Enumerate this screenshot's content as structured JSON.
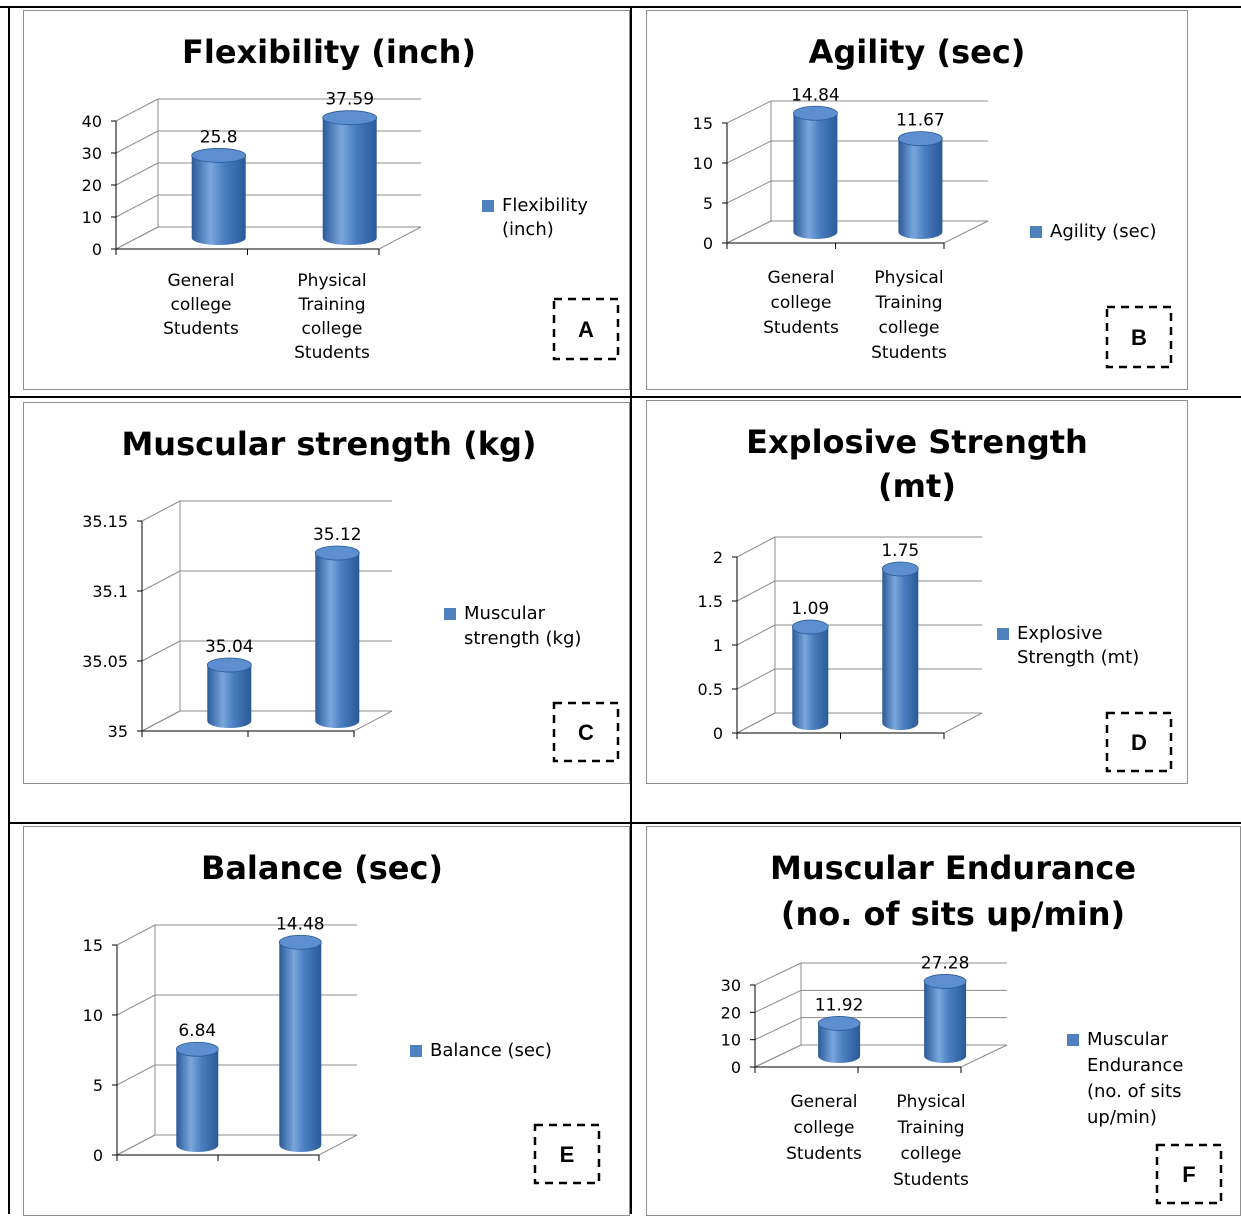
{
  "chart_data": [
    {
      "id": "A",
      "type": "bar",
      "title": "Flexibility (inch)",
      "categories": [
        "General college Students",
        "Physical Training college Students"
      ],
      "series": [
        {
          "name": "Flexibility (inch)",
          "values": [
            25.8,
            37.59
          ]
        }
      ],
      "value_labels": [
        "25.8",
        "37.59"
      ],
      "ylim": [
        0,
        40
      ],
      "yticks": [
        "0",
        "10",
        "20",
        "30",
        "40"
      ],
      "grid": true,
      "legend": "right",
      "tag": "A"
    },
    {
      "id": "B",
      "type": "bar",
      "title": "Agility (sec)",
      "categories": [
        "General college Students",
        "Physical Training college Students"
      ],
      "series": [
        {
          "name": "Agility (sec)",
          "values": [
            14.84,
            11.67
          ]
        }
      ],
      "value_labels": [
        "14.84",
        "11.67"
      ],
      "ylim": [
        0,
        15
      ],
      "yticks": [
        "0",
        "5",
        "10",
        "15"
      ],
      "grid": true,
      "legend": "right",
      "tag": "B"
    },
    {
      "id": "C",
      "type": "bar",
      "title": "Muscular strength (kg)",
      "categories": [
        "",
        ""
      ],
      "series": [
        {
          "name": "Muscular strength (kg)",
          "values": [
            35.04,
            35.12
          ]
        }
      ],
      "value_labels": [
        "35.04",
        "35.12"
      ],
      "ylim": [
        35,
        35.15
      ],
      "yticks": [
        "35",
        "35.05",
        "35.1",
        "35.15"
      ],
      "grid": true,
      "legend": "right",
      "tag": "C"
    },
    {
      "id": "D",
      "type": "bar",
      "title": "Explosive Strength (mt)",
      "categories": [
        "",
        ""
      ],
      "series": [
        {
          "name": "Explosive Strength (mt)",
          "values": [
            1.09,
            1.75
          ]
        }
      ],
      "value_labels": [
        "1.09",
        "1.75"
      ],
      "ylim": [
        0,
        2
      ],
      "yticks": [
        "0",
        "0.5",
        "1",
        "1.5",
        "2"
      ],
      "grid": true,
      "legend": "right",
      "tag": "D"
    },
    {
      "id": "E",
      "type": "bar",
      "title": "Balance (sec)",
      "categories": [
        "",
        ""
      ],
      "series": [
        {
          "name": "Balance (sec)",
          "values": [
            6.84,
            14.48
          ]
        }
      ],
      "value_labels": [
        "6.84",
        "14.48"
      ],
      "ylim": [
        0,
        15
      ],
      "yticks": [
        "0",
        "5",
        "10",
        "15"
      ],
      "grid": true,
      "legend": "right",
      "tag": "E"
    },
    {
      "id": "F",
      "type": "bar",
      "title": "Muscular Endurance (no. of sits up/min)",
      "categories": [
        "General college Students",
        "Physical Training college Students"
      ],
      "series": [
        {
          "name": "Muscular Endurance (no. of sits up/min)",
          "values": [
            11.92,
            27.28
          ]
        }
      ],
      "value_labels": [
        "11.92",
        "27.28"
      ],
      "ylim": [
        0,
        30
      ],
      "yticks": [
        "0",
        "10",
        "20",
        "30"
      ],
      "grid": true,
      "legend": "right",
      "tag": "F"
    }
  ],
  "colors": {
    "bar_dark": "#2a5a98",
    "bar_mid": "#4a7ebf",
    "bar_light": "#7aa6dc",
    "bar_top": "#5d8fd0",
    "legend_swatch": "#4f81bd",
    "grid": "#8c8c8c",
    "panel_border": "#8f8f8f"
  }
}
